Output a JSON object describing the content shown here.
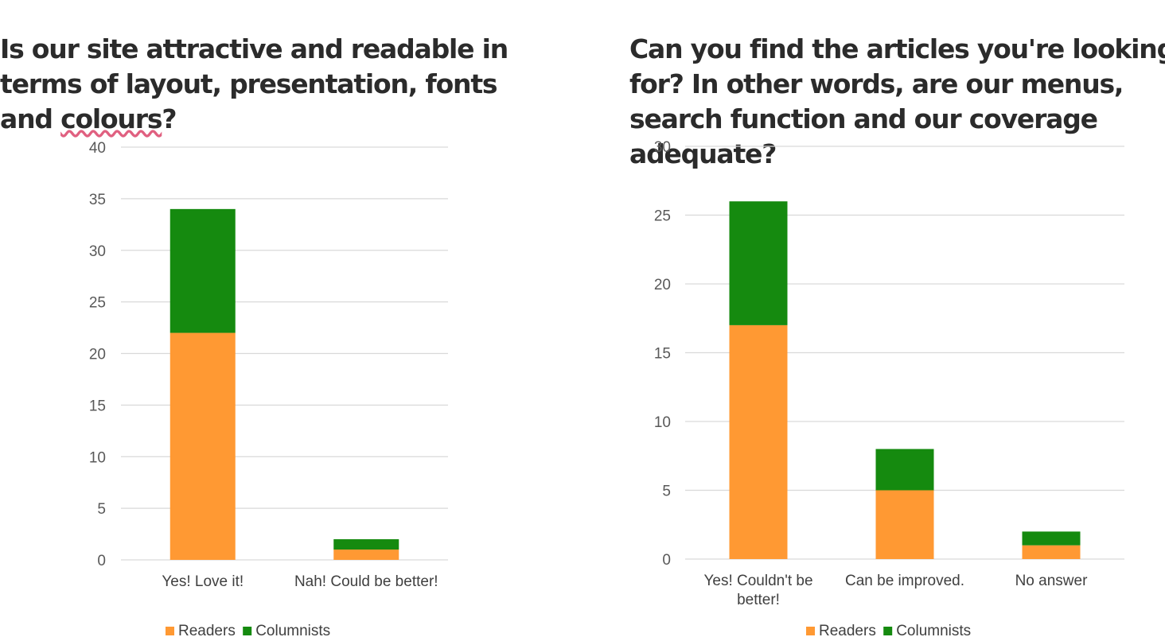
{
  "colors": {
    "readers": "#FF9933",
    "columnists": "#158A0F",
    "grid": "#D9D9D9",
    "title": "#2B2B2B"
  },
  "chart_data": [
    {
      "type": "bar",
      "stacked": true,
      "title": "Is our site attractive and readable in terms of layout, presentation, fonts and colours?",
      "categories": [
        "Yes! Love it!",
        "Nah! Could be better!"
      ],
      "series": [
        {
          "name": "Readers",
          "values": [
            22,
            1
          ]
        },
        {
          "name": "Columnists",
          "values": [
            12,
            1
          ]
        }
      ],
      "ylim": [
        0,
        40
      ],
      "yticks": [
        0,
        5,
        10,
        15,
        20,
        25,
        30,
        35,
        40
      ],
      "grid": true,
      "legend": "bottom"
    },
    {
      "type": "bar",
      "stacked": true,
      "title": "Can you find the articles you're looking for? In other words, are our menus, search function and our coverage adequate?",
      "categories": [
        "Yes! Couldn't be better!",
        "Can be improved.",
        "No answer"
      ],
      "series": [
        {
          "name": "Readers",
          "values": [
            17,
            5,
            1
          ]
        },
        {
          "name": "Columnists",
          "values": [
            9,
            3,
            1
          ]
        }
      ],
      "ylim": [
        0,
        30
      ],
      "yticks": [
        0,
        5,
        10,
        15,
        20,
        25,
        30
      ],
      "grid": true,
      "legend": "bottom"
    }
  ]
}
